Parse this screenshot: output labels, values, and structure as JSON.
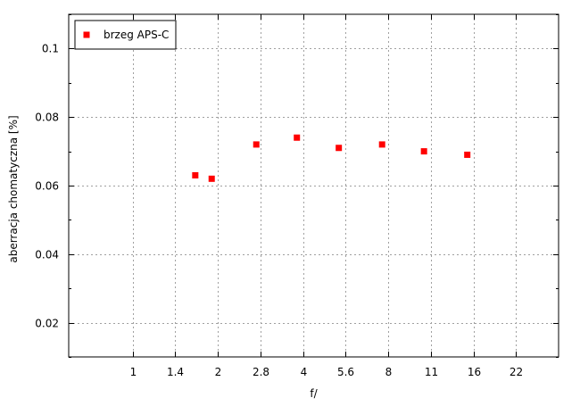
{
  "chart_data": {
    "type": "scatter",
    "xlabel": "f/",
    "ylabel": "aberracja chomatyczna [%]",
    "x_scale": "log2",
    "x_ticks": [
      {
        "value": 0.8409,
        "label": "1"
      },
      {
        "value": 1.1892,
        "label": "1.4"
      },
      {
        "value": 1.6818,
        "label": "2"
      },
      {
        "value": 2.3784,
        "label": "2.8"
      },
      {
        "value": 3.3636,
        "label": "4"
      },
      {
        "value": 4.7568,
        "label": "5.6"
      },
      {
        "value": 6.7272,
        "label": "8"
      },
      {
        "value": 9.5137,
        "label": "11"
      },
      {
        "value": 13.4543,
        "label": "16"
      },
      {
        "value": 19.0273,
        "label": "22"
      }
    ],
    "xlim": [
      0.5,
      26.9
    ],
    "ylim": [
      0.01,
      0.11
    ],
    "y_ticks": [
      0.02,
      0.04,
      0.06,
      0.08,
      0.1
    ],
    "y_tick_labels": [
      "0.02",
      "0.04",
      "0.06",
      "0.08",
      "0.1"
    ],
    "y_minor_step": 0.01,
    "grid": true,
    "legend_position": "top-left",
    "series": [
      {
        "name": "brzeg APS-C",
        "color": "#ff0000",
        "marker": "square",
        "points": [
          {
            "x": 1.4,
            "y": 0.063
          },
          {
            "x": 1.6,
            "y": 0.062
          },
          {
            "x": 2.3,
            "y": 0.072
          },
          {
            "x": 3.2,
            "y": 0.074
          },
          {
            "x": 4.5,
            "y": 0.071
          },
          {
            "x": 6.4,
            "y": 0.072
          },
          {
            "x": 9.0,
            "y": 0.07
          },
          {
            "x": 12.8,
            "y": 0.069
          }
        ]
      }
    ]
  }
}
